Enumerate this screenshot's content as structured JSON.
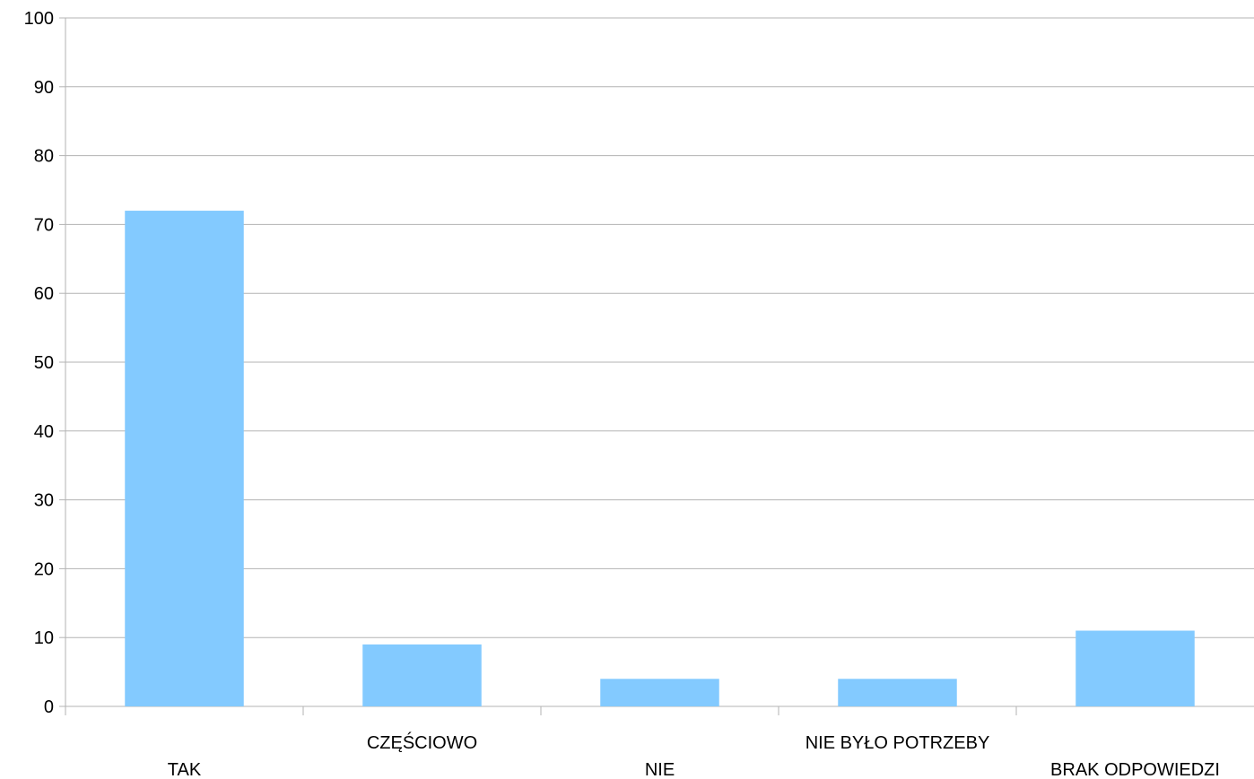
{
  "chart_data": {
    "type": "bar",
    "categories": [
      "TAK",
      "CZĘŚCIOWO",
      "NIE",
      "NIE BYŁO POTRZEBY",
      "BRAK ODPOWIEDZI"
    ],
    "values": [
      72,
      9,
      4,
      4,
      11
    ],
    "title": "",
    "xlabel": "",
    "ylabel": "",
    "ylim": [
      0,
      100
    ],
    "yticks": [
      0,
      10,
      20,
      30,
      40,
      50,
      60,
      70,
      80,
      90,
      100
    ],
    "grid": true,
    "legend": "none",
    "bar_color": "#83caff",
    "grid_color": "#b3b3b3"
  }
}
